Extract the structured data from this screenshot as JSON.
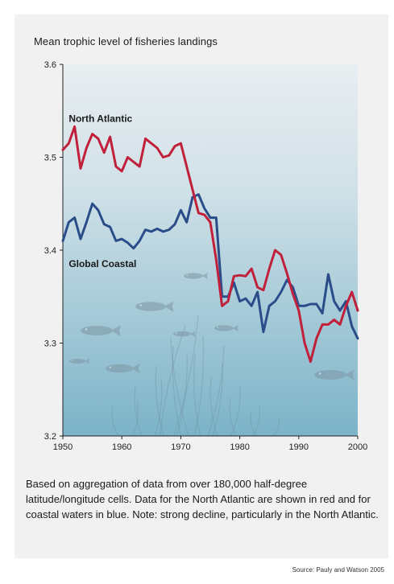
{
  "colors": {
    "north_atlantic": "#c0203a",
    "global_coastal": "#2a4d8a",
    "water_top": "#e9eef1",
    "water_bottom": "#7bb3c8"
  },
  "decorations": [
    "fish-icon",
    "seaweed-icon"
  ],
  "chart_data": {
    "type": "line",
    "title": "Mean trophic level of fisheries landings",
    "xlabel": "",
    "ylabel": "",
    "xlim": [
      1950,
      2000
    ],
    "ylim": [
      3.2,
      3.6
    ],
    "x_ticks": [
      "1950",
      "1960",
      "1970",
      "1980",
      "1990",
      "2000"
    ],
    "y_ticks": [
      "3.6",
      "3.5",
      "3.4",
      "3.3",
      "3.2"
    ],
    "grid": false,
    "legend": "inline labels",
    "series": [
      {
        "name": "North Atlantic",
        "x": [
          1950,
          1951,
          1952,
          1953,
          1954,
          1955,
          1956,
          1957,
          1958,
          1959,
          1960,
          1961,
          1962,
          1963,
          1964,
          1965,
          1966,
          1967,
          1968,
          1969,
          1970,
          1971,
          1972,
          1973,
          1974,
          1975,
          1976,
          1977,
          1978,
          1979,
          1980,
          1981,
          1982,
          1983,
          1984,
          1985,
          1986,
          1987,
          1988,
          1989,
          1990,
          1991,
          1992,
          1993,
          1994,
          1995,
          1996,
          1997,
          1998,
          1999,
          2000
        ],
        "values": [
          3.508,
          3.515,
          3.533,
          3.488,
          3.51,
          3.525,
          3.52,
          3.505,
          3.522,
          3.49,
          3.485,
          3.5,
          3.495,
          3.49,
          3.52,
          3.515,
          3.51,
          3.5,
          3.502,
          3.512,
          3.515,
          3.49,
          3.465,
          3.44,
          3.438,
          3.43,
          3.39,
          3.34,
          3.345,
          3.372,
          3.373,
          3.372,
          3.38,
          3.36,
          3.357,
          3.38,
          3.4,
          3.395,
          3.375,
          3.353,
          3.335,
          3.3,
          3.28,
          3.305,
          3.32,
          3.32,
          3.325,
          3.32,
          3.34,
          3.355,
          3.335
        ]
      },
      {
        "name": "Global Coastal",
        "x": [
          1950,
          1951,
          1952,
          1953,
          1954,
          1955,
          1956,
          1957,
          1958,
          1959,
          1960,
          1961,
          1962,
          1963,
          1964,
          1965,
          1966,
          1967,
          1968,
          1969,
          1970,
          1971,
          1972,
          1973,
          1974,
          1975,
          1976,
          1977,
          1978,
          1979,
          1980,
          1981,
          1982,
          1983,
          1984,
          1985,
          1986,
          1987,
          1988,
          1989,
          1990,
          1991,
          1992,
          1993,
          1994,
          1995,
          1996,
          1997,
          1998,
          1999,
          2000
        ],
        "values": [
          3.41,
          3.43,
          3.435,
          3.412,
          3.43,
          3.45,
          3.443,
          3.428,
          3.425,
          3.41,
          3.412,
          3.408,
          3.402,
          3.41,
          3.422,
          3.42,
          3.423,
          3.42,
          3.422,
          3.428,
          3.443,
          3.43,
          3.457,
          3.46,
          3.445,
          3.435,
          3.435,
          3.35,
          3.35,
          3.365,
          3.345,
          3.348,
          3.34,
          3.355,
          3.312,
          3.34,
          3.345,
          3.355,
          3.368,
          3.36,
          3.34,
          3.34,
          3.342,
          3.342,
          3.332,
          3.374,
          3.345,
          3.335,
          3.345,
          3.318,
          3.305
        ]
      }
    ],
    "annotations": [
      {
        "text": "North Atlantic",
        "x": 1951,
        "y": 3.538
      },
      {
        "text": "Global Coastal",
        "x": 1951,
        "y": 3.382
      }
    ]
  },
  "caption": "Based on aggregation of data from over 180,000 half-degree latitude/longitude cells. Data for the North Atlantic are shown in red and for coastal waters in blue. Note: strong decline, particularly in the North Atlantic.",
  "source": "Source: Pauly and Watson 2005"
}
